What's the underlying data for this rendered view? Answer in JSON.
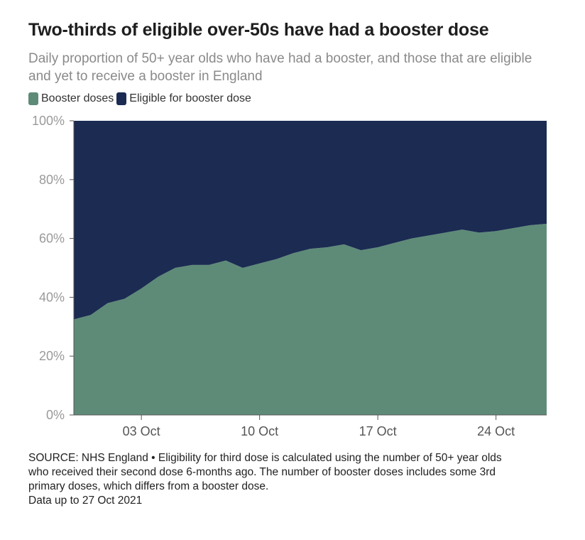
{
  "title": "Two-thirds of eligible over-50s have had a booster dose",
  "subtitle": "Daily proportion of 50+ year olds who have had a booster, and those that are eligible and yet to receive a booster in England",
  "legend": {
    "items": [
      {
        "label": "Booster doses",
        "color": "#5e8b78"
      },
      {
        "label": "Eligible for booster dose",
        "color": "#1b2b52"
      }
    ]
  },
  "chart_data": {
    "type": "area",
    "stacked": true,
    "x": [
      "2021-09-29",
      "2021-09-30",
      "2021-10-01",
      "2021-10-02",
      "2021-10-03",
      "2021-10-04",
      "2021-10-05",
      "2021-10-06",
      "2021-10-07",
      "2021-10-08",
      "2021-10-09",
      "2021-10-10",
      "2021-10-11",
      "2021-10-12",
      "2021-10-13",
      "2021-10-14",
      "2021-10-15",
      "2021-10-16",
      "2021-10-17",
      "2021-10-18",
      "2021-10-19",
      "2021-10-20",
      "2021-10-21",
      "2021-10-22",
      "2021-10-23",
      "2021-10-24",
      "2021-10-25",
      "2021-10-26",
      "2021-10-27"
    ],
    "series": [
      {
        "name": "Booster doses",
        "color": "#5e8b78",
        "values": [
          32.5,
          34,
          38,
          39.5,
          43,
          47,
          50,
          51,
          51,
          52.5,
          50,
          51.5,
          53,
          55,
          56.5,
          57,
          58,
          56,
          57,
          58.5,
          60,
          61,
          62,
          63,
          62,
          62.5,
          63.5,
          64.5,
          65
        ]
      },
      {
        "name": "Eligible for booster dose",
        "color": "#1b2b52",
        "values": [
          67.5,
          66,
          62,
          60.5,
          57,
          53,
          50,
          49,
          49,
          47.5,
          50,
          48.5,
          47,
          45,
          43.5,
          43,
          42,
          44,
          43,
          41.5,
          40,
          39,
          38,
          37,
          38,
          37.5,
          36.5,
          35.5,
          35
        ]
      }
    ],
    "ylim": [
      0,
      100
    ],
    "yticks": [
      "0%",
      "20%",
      "40%",
      "60%",
      "80%",
      "100%"
    ],
    "ytick_values": [
      0,
      20,
      40,
      60,
      80,
      100
    ],
    "xticks": [
      {
        "date": "2021-10-03",
        "label": "03 Oct"
      },
      {
        "date": "2021-10-10",
        "label": "10 Oct"
      },
      {
        "date": "2021-10-17",
        "label": "17 Oct"
      },
      {
        "date": "2021-10-24",
        "label": "24 Oct"
      }
    ],
    "axis_color": "#555555",
    "tick_label_color": "#9a9a9a"
  },
  "source": {
    "lines": [
      "SOURCE: NHS England • Eligibility for third dose is calculated using the number of 50+ year olds",
      "who received their second dose 6-months ago. The number of booster doses includes some 3rd",
      "primary doses, which differs from a booster dose.",
      "Data up to 27 Oct 2021"
    ]
  }
}
